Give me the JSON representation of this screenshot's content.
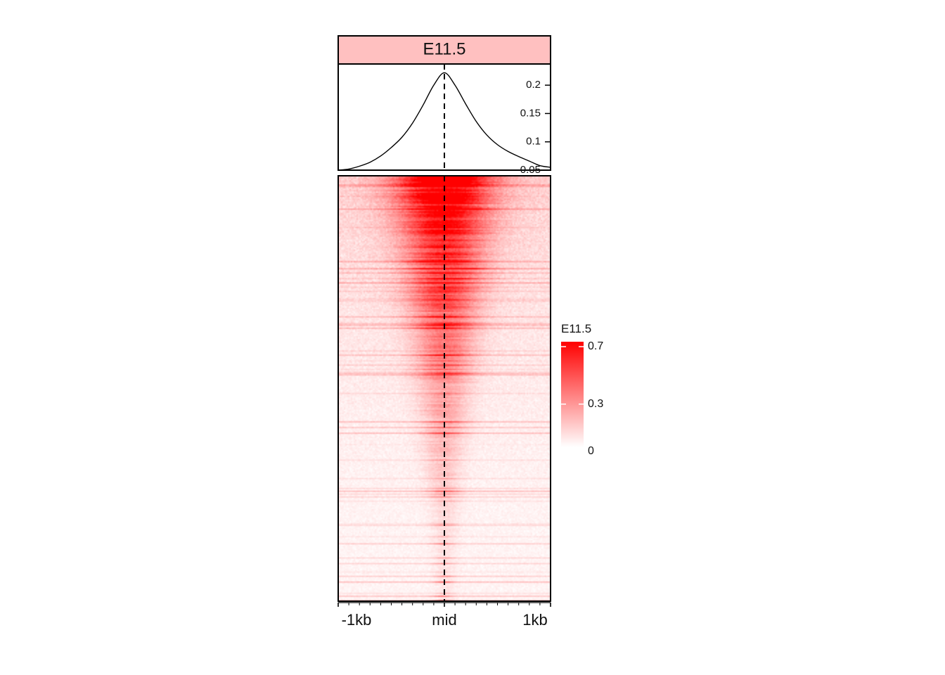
{
  "chart_data": {
    "type": "heatmap",
    "panel_title": "E11.5",
    "profile": {
      "type": "line",
      "x": [
        -1000,
        -900,
        -800,
        -700,
        -600,
        -500,
        -400,
        -300,
        -200,
        -100,
        0,
        100,
        200,
        300,
        400,
        500,
        600,
        700,
        800,
        900,
        1000
      ],
      "values": [
        0.05,
        0.052,
        0.057,
        0.064,
        0.075,
        0.09,
        0.108,
        0.133,
        0.165,
        0.2,
        0.222,
        0.2,
        0.167,
        0.136,
        0.112,
        0.095,
        0.083,
        0.074,
        0.066,
        0.058,
        0.055
      ],
      "ylim": [
        0.05,
        0.225
      ],
      "yticks": [
        "0.2",
        "0.15",
        "0.1",
        "0.05"
      ],
      "ytick_values": [
        0.2,
        0.15,
        0.1,
        0.05
      ]
    },
    "heatmap": {
      "x_tick_labels": [
        "-1kb",
        "mid",
        "1kb"
      ],
      "x_range": [
        -1000,
        1000
      ],
      "n_minor_ticks": 21,
      "center_line": "dashed",
      "color_low": "#ffffff",
      "color_high": "#ff0000",
      "value_max": 0.7
    },
    "legend": {
      "title": "E11.5",
      "tick_labels": [
        "0.7",
        "0.3",
        "0"
      ],
      "tick_values": [
        0.7,
        0.3,
        0
      ],
      "placement": "right"
    },
    "colors": {
      "strip_fill": "#ffc0c0",
      "axis": "#000000",
      "heat": "#ff0000"
    }
  }
}
